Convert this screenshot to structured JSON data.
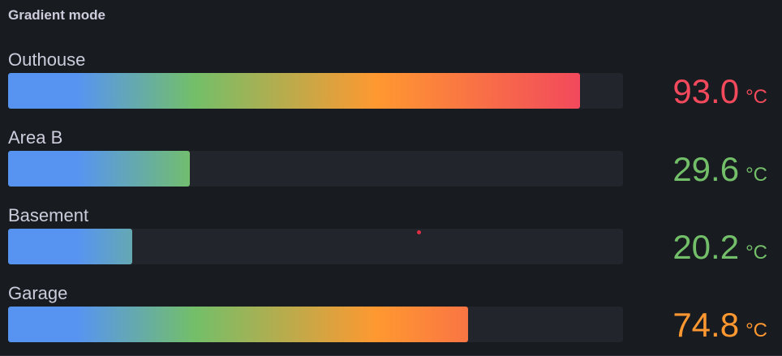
{
  "panel": {
    "title": "Gradient mode"
  },
  "gauge": {
    "min": 0,
    "max": 100,
    "unit": "°C",
    "gradient_colors": [
      "#5794f2",
      "#73bf69",
      "#ff9830",
      "#f2495c"
    ]
  },
  "rows": [
    {
      "label": "Outhouse",
      "value": 93.0,
      "display": "93.0",
      "color": "#f2495c"
    },
    {
      "label": "Area B",
      "value": 29.6,
      "display": "29.6",
      "color": "#73bf69"
    },
    {
      "label": "Basement",
      "value": 20.2,
      "display": "20.2",
      "color": "#73bf69"
    },
    {
      "label": "Garage",
      "value": 74.8,
      "display": "74.8",
      "color": "#ff9830"
    }
  ]
}
